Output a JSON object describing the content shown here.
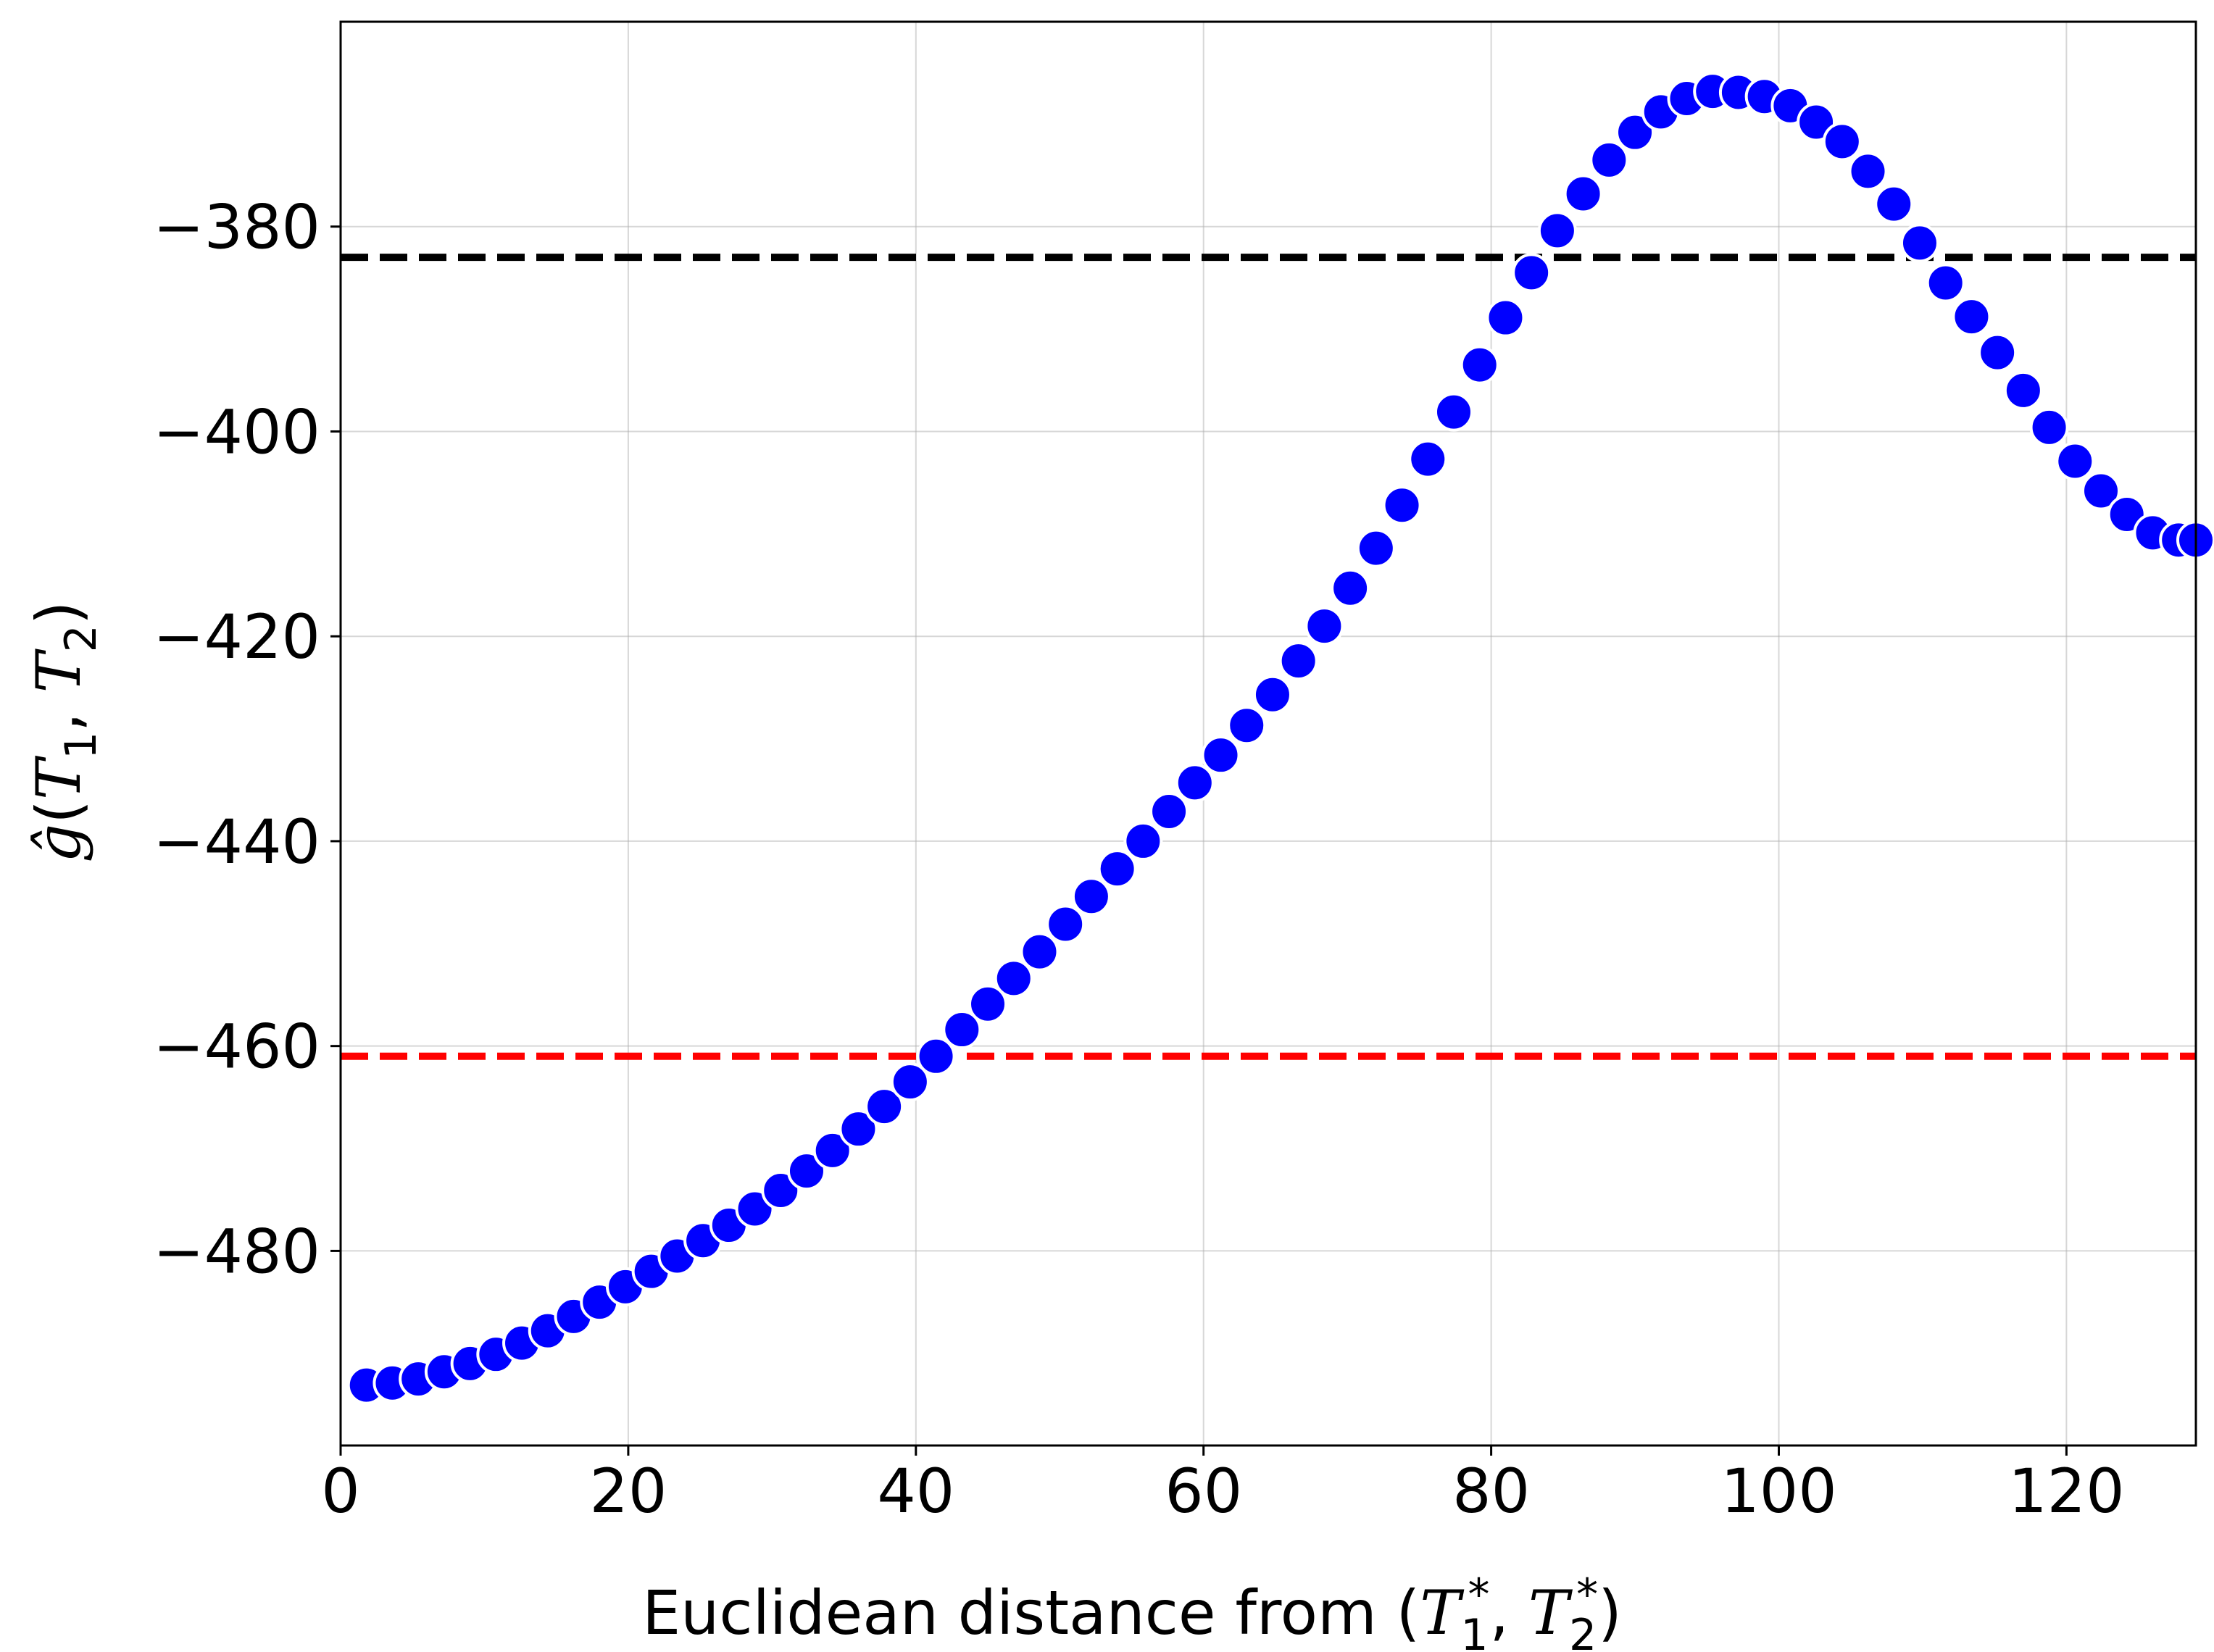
{
  "chart_data": {
    "type": "scatter",
    "xlabel": {
      "prefix": "Euclidean distance from (",
      "var1": "T",
      "sub1": "1",
      "sup1": "*",
      "sep": ", ",
      "var2": "T",
      "sub2": "2",
      "sup2": "*",
      "suffix": ")"
    },
    "ylabel": {
      "var": "ĝ",
      "open": "(",
      "var1": "T",
      "sub1": "1",
      "sep": ", ",
      "var2": "T",
      "sub2": "2",
      "close": ")"
    },
    "xlim": [
      0,
      129
    ],
    "ylim": [
      -499,
      -360
    ],
    "xticks": [
      0,
      20,
      40,
      60,
      80,
      100,
      120
    ],
    "yticks": [
      -380,
      -400,
      -420,
      -440,
      -460,
      -480
    ],
    "xtick_labels": [
      "0",
      "20",
      "40",
      "60",
      "80",
      "100",
      "120"
    ],
    "ytick_labels": [
      "−380",
      "−400",
      "−420",
      "−440",
      "−460",
      "−480"
    ],
    "grid": true,
    "marker_color": "#0000ff",
    "marker_edge_color": "#ffffff",
    "reference_lines": [
      {
        "y": -383,
        "color": "#000000",
        "style": "dashed"
      },
      {
        "y": -461,
        "color": "#ff0000",
        "style": "dashed"
      }
    ],
    "series": [
      {
        "x": [
          1.8,
          3.6,
          5.4,
          7.2,
          9.0,
          10.8,
          12.6,
          14.4,
          16.2,
          18.0,
          19.8,
          21.6,
          23.4,
          25.2,
          27.0,
          28.8,
          30.6,
          32.4,
          34.2,
          36.0,
          37.8,
          39.6,
          41.4,
          43.2,
          45.0,
          46.8,
          48.6,
          50.4,
          52.2,
          54.0,
          55.8,
          57.6,
          59.4,
          61.2,
          63.0,
          64.8,
          66.6,
          68.4,
          70.2,
          72.0,
          73.8,
          75.6,
          77.4,
          79.2,
          81.0,
          82.8,
          84.6,
          86.4,
          88.2,
          90.0,
          91.8,
          93.6,
          95.4,
          97.2,
          99.0,
          100.8,
          102.6,
          104.4,
          106.2,
          108.0,
          109.8,
          111.6,
          113.4,
          115.2,
          117.0,
          118.8,
          120.6,
          122.4,
          124.2,
          126.0,
          127.8,
          129.0
        ],
        "y": [
          -493.1,
          -492.9,
          -492.5,
          -491.8,
          -491.0,
          -490.1,
          -489.0,
          -487.8,
          -486.4,
          -485.0,
          -483.5,
          -482.0,
          -480.5,
          -479.0,
          -477.5,
          -475.9,
          -474.1,
          -472.2,
          -470.2,
          -468.1,
          -465.9,
          -463.5,
          -461.0,
          -458.4,
          -455.9,
          -453.4,
          -450.8,
          -448.1,
          -445.4,
          -442.7,
          -440.0,
          -437.1,
          -434.3,
          -431.6,
          -428.7,
          -425.7,
          -422.4,
          -419.0,
          -415.3,
          -411.4,
          -407.2,
          -402.7,
          -398.1,
          -393.5,
          -388.9,
          -384.5,
          -380.4,
          -376.8,
          -373.5,
          -370.8,
          -368.8,
          -367.5,
          -366.8,
          -366.9,
          -367.3,
          -368.2,
          -369.8,
          -371.7,
          -374.6,
          -377.8,
          -381.6,
          -385.5,
          -388.8,
          -392.3,
          -396.0,
          -399.6,
          -402.9,
          -405.8,
          -408.1,
          -409.9,
          -410.6,
          -410.6
        ]
      }
    ]
  }
}
